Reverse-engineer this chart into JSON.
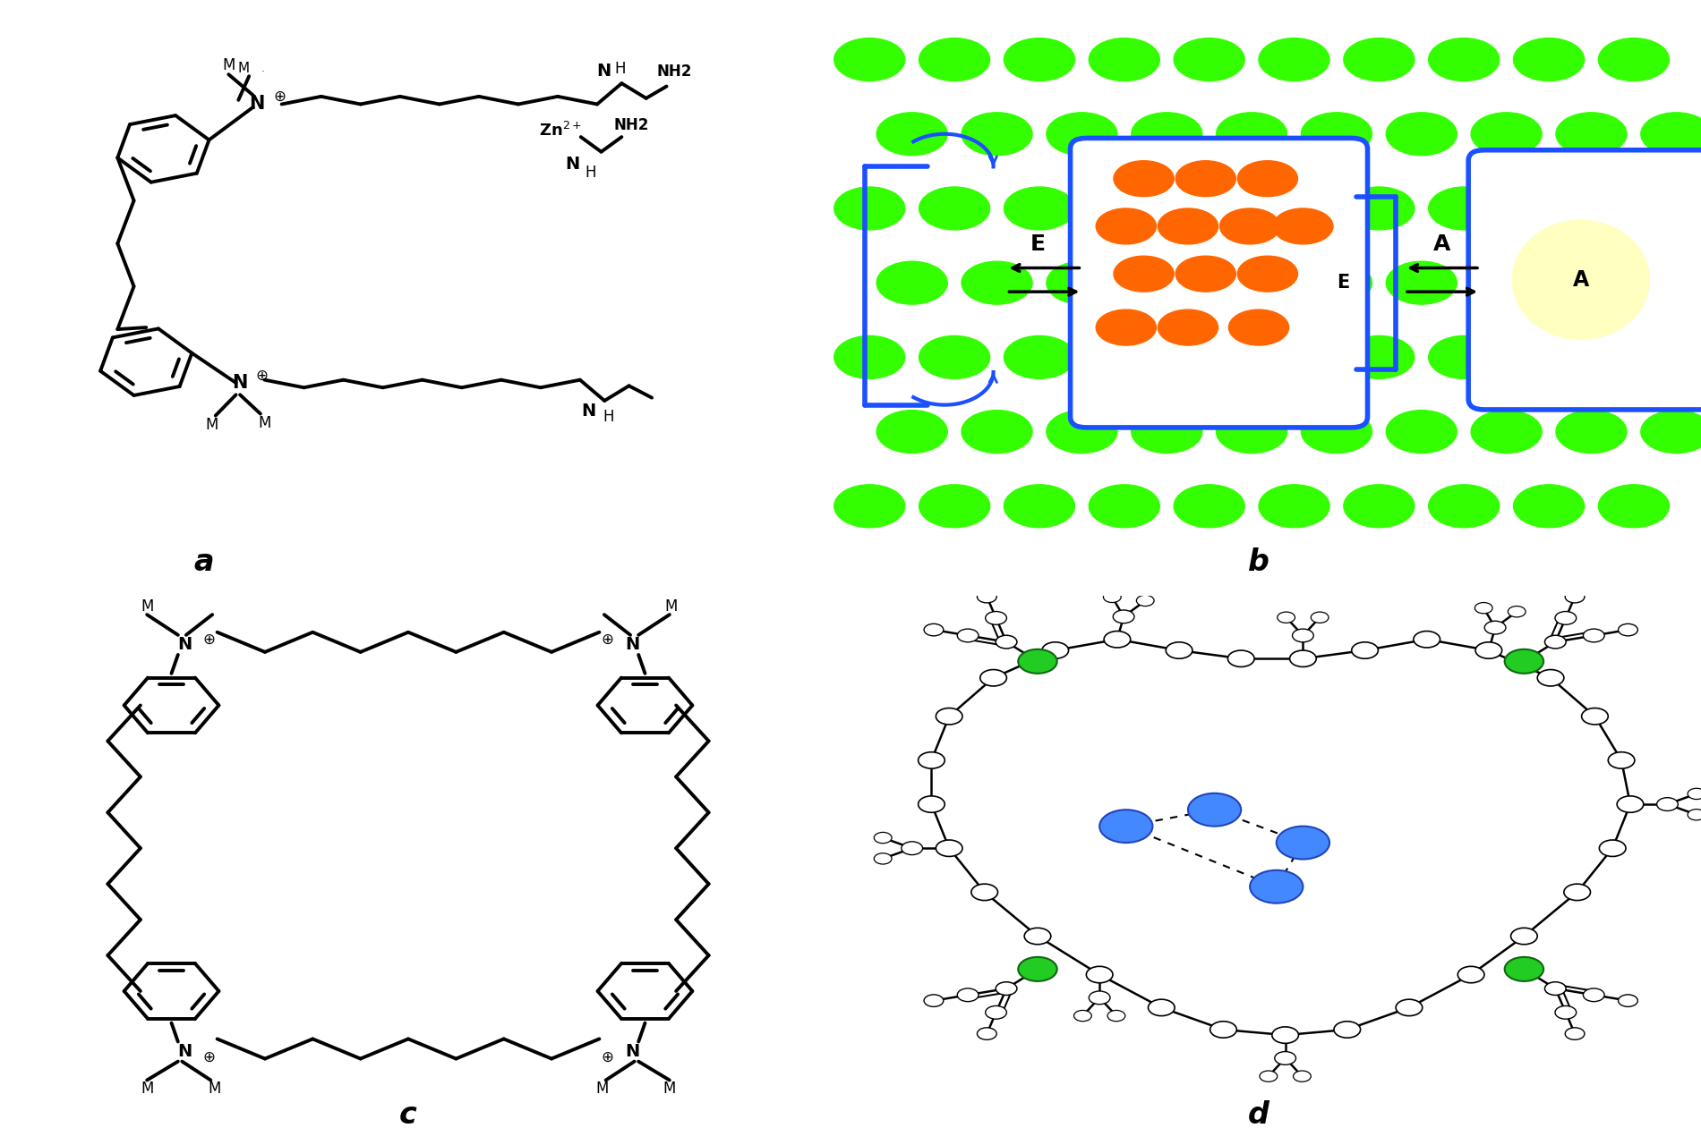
{
  "bg_color": "#ffffff",
  "black": "#000000",
  "green": "#33ff00",
  "blue": "#1a50ff",
  "orange": "#ff6600",
  "yellow": "#ffffc0",
  "atom_blue": "#4488ff",
  "atom_green": "#22cc22",
  "lw": 2.8,
  "lw_b": 4.0,
  "label_fs": 24,
  "panel_labels": [
    "a",
    "b",
    "c",
    "d"
  ]
}
